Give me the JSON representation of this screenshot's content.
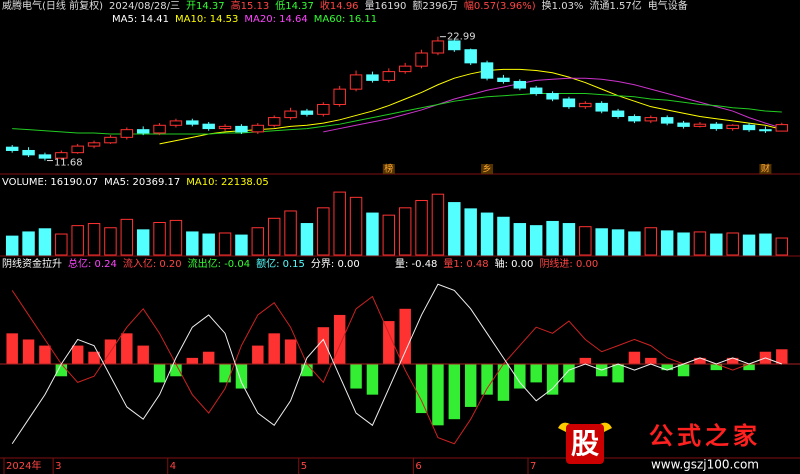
{
  "header": {
    "items": [
      {
        "text": "威腾电气(日线 前复权)",
        "color": "#dddddd"
      },
      {
        "text": "2024/08/28/三",
        "color": "#dddddd"
      },
      {
        "text": "开14.37",
        "color": "#33ff33"
      },
      {
        "text": "高15.13",
        "color": "#ff4444"
      },
      {
        "text": "低14.37",
        "color": "#33ff33"
      },
      {
        "text": "收14.96",
        "color": "#ff4444"
      },
      {
        "text": "量16190",
        "color": "#dddddd"
      },
      {
        "text": "额2396万",
        "color": "#dddddd"
      },
      {
        "text": "幅0.57(3.96%)",
        "color": "#ff4444"
      },
      {
        "text": "换1.03%",
        "color": "#dddddd"
      },
      {
        "text": "流通1.57亿",
        "color": "#dddddd"
      },
      {
        "text": "电气设备",
        "color": "#dddddd"
      }
    ]
  },
  "chart_data": [
    {
      "type": "candlestick",
      "categories": [
        "2024年",
        null,
        null,
        "3",
        null,
        null,
        null,
        null,
        null,
        null,
        "4",
        null,
        null,
        null,
        null,
        null,
        null,
        null,
        "5",
        null,
        null,
        null,
        null,
        null,
        null,
        "6",
        null,
        null,
        null,
        null,
        null,
        null,
        "7",
        null,
        null,
        null,
        null,
        null,
        null,
        null,
        null,
        null,
        null,
        null,
        null,
        null,
        null,
        null
      ],
      "open": [
        12.9,
        12.6,
        12.2,
        11.9,
        12.4,
        13.0,
        13.3,
        13.8,
        14.5,
        14.2,
        14.9,
        15.3,
        15.0,
        14.6,
        14.8,
        14.3,
        14.9,
        15.6,
        16.2,
        15.9,
        16.8,
        18.2,
        19.5,
        19.0,
        19.8,
        20.3,
        21.5,
        22.6,
        21.8,
        20.6,
        19.2,
        18.9,
        18.3,
        17.8,
        17.3,
        16.6,
        16.9,
        16.2,
        15.7,
        15.3,
        15.6,
        15.1,
        14.8,
        15.0,
        14.6,
        14.9,
        14.5,
        14.37
      ],
      "high": [
        13.1,
        12.9,
        12.4,
        12.6,
        13.2,
        13.5,
        14.0,
        14.7,
        14.8,
        15.1,
        15.5,
        15.5,
        15.2,
        15.0,
        15.0,
        15.1,
        15.8,
        16.5,
        16.4,
        17.0,
        18.5,
        19.9,
        19.8,
        20.1,
        20.6,
        21.8,
        22.99,
        22.8,
        21.9,
        20.8,
        19.5,
        19.1,
        18.5,
        18.0,
        17.5,
        17.1,
        17.1,
        16.4,
        15.9,
        15.8,
        15.8,
        15.3,
        15.2,
        15.2,
        15.0,
        15.1,
        14.8,
        15.13
      ],
      "low": [
        12.4,
        12.0,
        11.68,
        11.8,
        12.3,
        12.8,
        13.2,
        13.6,
        14.0,
        14.0,
        14.7,
        14.8,
        14.4,
        14.4,
        14.1,
        14.1,
        14.7,
        15.4,
        15.7,
        15.7,
        16.6,
        18.0,
        18.8,
        18.8,
        19.6,
        20.1,
        21.3,
        21.6,
        20.4,
        19.0,
        18.7,
        18.1,
        17.6,
        17.1,
        16.4,
        16.4,
        16.0,
        15.5,
        15.1,
        15.1,
        14.9,
        14.6,
        14.7,
        14.4,
        14.4,
        14.3,
        14.2,
        14.37
      ],
      "close": [
        12.6,
        12.2,
        11.9,
        12.4,
        13.0,
        13.3,
        13.8,
        14.5,
        14.2,
        14.9,
        15.3,
        15.0,
        14.6,
        14.8,
        14.3,
        14.9,
        15.6,
        16.2,
        15.9,
        16.8,
        18.2,
        19.5,
        19.0,
        19.8,
        20.3,
        21.5,
        22.6,
        21.8,
        20.6,
        19.2,
        18.9,
        18.3,
        17.8,
        17.3,
        16.6,
        16.9,
        16.2,
        15.7,
        15.3,
        15.6,
        15.1,
        14.8,
        15.0,
        14.6,
        14.9,
        14.5,
        14.4,
        14.96
      ],
      "up_color": "#ff3232",
      "down_color": "#54ffff",
      "ylim": [
        11,
        23.6
      ],
      "legend": [
        {
          "text": "MA5: 14.41",
          "color": "#ffffff"
        },
        {
          "text": "MA10: 14.53",
          "color": "#ffff00"
        },
        {
          "text": "MA20: 14.64",
          "color": "#ff44ff"
        },
        {
          "text": "MA60: 16.11",
          "color": "#33ff33"
        }
      ],
      "series": [
        {
          "color": "#ffff00",
          "values": [
            null,
            null,
            null,
            null,
            null,
            null,
            null,
            null,
            null,
            13.2,
            13.5,
            13.8,
            14.1,
            14.3,
            14.4,
            14.5,
            14.6,
            14.8,
            14.9,
            15.1,
            15.4,
            15.8,
            16.2,
            16.7,
            17.3,
            17.9,
            18.6,
            19.2,
            19.6,
            19.9,
            20.0,
            20.0,
            19.9,
            19.7,
            19.3,
            18.8,
            18.2,
            17.6,
            17.1,
            16.6,
            16.3,
            16.0,
            15.7,
            15.5,
            15.3,
            15.1,
            14.9,
            14.53
          ]
        },
        {
          "color": "#cc33cc",
          "values": [
            null,
            null,
            null,
            null,
            null,
            null,
            null,
            null,
            null,
            null,
            null,
            null,
            null,
            null,
            null,
            null,
            null,
            null,
            null,
            14.3,
            14.6,
            14.9,
            15.2,
            15.5,
            15.9,
            16.3,
            16.8,
            17.3,
            17.7,
            18.1,
            18.4,
            18.7,
            19.0,
            19.1,
            19.2,
            19.2,
            19.1,
            18.9,
            18.6,
            18.2,
            17.8,
            17.4,
            17.0,
            16.6,
            16.2,
            15.6,
            15.1,
            14.64
          ]
        },
        {
          "color": "#22cc22",
          "values": [
            14.6,
            14.5,
            14.4,
            14.3,
            14.2,
            14.2,
            14.1,
            14.1,
            14.1,
            14.1,
            14.1,
            14.1,
            14.1,
            14.2,
            14.2,
            14.3,
            14.4,
            14.5,
            14.6,
            14.8,
            15.0,
            15.3,
            15.6,
            15.9,
            16.2,
            16.5,
            16.8,
            17.1,
            17.3,
            17.5,
            17.6,
            17.7,
            17.8,
            17.8,
            17.8,
            17.8,
            17.7,
            17.6,
            17.5,
            17.3,
            17.2,
            17.0,
            16.8,
            16.7,
            16.5,
            16.4,
            16.2,
            16.11
          ]
        }
      ],
      "annotations": [
        {
          "text": "榜",
          "x": 23
        },
        {
          "text": "乡",
          "x": 29
        },
        {
          "text": "财",
          "x": 46
        }
      ]
    },
    {
      "type": "volume",
      "legend": [
        {
          "text": "VOLUME: 16190.07",
          "color": "#ffffff"
        },
        {
          "text": "MA5: 20369.17",
          "color": "#ffffff"
        },
        {
          "text": "MA10: 22138.05",
          "color": "#ffff00"
        }
      ],
      "values": [
        18000,
        22000,
        25000,
        20000,
        28000,
        30000,
        26000,
        34000,
        24000,
        31000,
        33000,
        22000,
        20000,
        21000,
        19000,
        26000,
        35000,
        42000,
        30000,
        45000,
        60000,
        55000,
        40000,
        38000,
        45000,
        52000,
        58000,
        50000,
        44000,
        40000,
        36000,
        30000,
        28000,
        32000,
        30000,
        27000,
        25000,
        24000,
        22000,
        26000,
        23000,
        21000,
        22000,
        20000,
        21000,
        19000,
        20000,
        16190
      ],
      "ylim": [
        0,
        62000
      ]
    },
    {
      "type": "indicator",
      "legend": [
        {
          "text": "阴线资金拉升",
          "color": "#ffffff"
        },
        {
          "text": "总亿: 0.24",
          "color": "#ff44ff"
        },
        {
          "text": "流入亿: 0.20",
          "color": "#ff4444"
        },
        {
          "text": "流出亿: -0.04",
          "color": "#33ff33"
        },
        {
          "text": "额亿: 0.15",
          "color": "#54ffff"
        },
        {
          "text": "分界: 0.00",
          "color": "#ffffff"
        }
      ],
      "legend2": [
        {
          "text": "量: -0.48",
          "color": "#ffffff"
        },
        {
          "text": "量1: 0.48",
          "color": "#ff4444"
        },
        {
          "text": "轴: 0.00",
          "color": "#ffffff"
        },
        {
          "text": "阴线进: 0.00",
          "color": "#ff4444"
        }
      ],
      "values": [
        0.5,
        0.4,
        0.3,
        -0.2,
        0.3,
        0.2,
        0.4,
        0.5,
        0.3,
        -0.3,
        -0.2,
        0.1,
        0.2,
        -0.3,
        -0.4,
        0.3,
        0.5,
        0.4,
        -0.2,
        0.6,
        0.8,
        -0.4,
        -0.5,
        0.7,
        0.9,
        -0.8,
        -1.0,
        -0.9,
        -0.7,
        -0.5,
        -0.6,
        -0.4,
        -0.3,
        -0.5,
        -0.3,
        0.1,
        -0.2,
        -0.3,
        0.2,
        0.1,
        -0.1,
        -0.2,
        0.1,
        -0.1,
        0.1,
        -0.1,
        0.2,
        0.24
      ],
      "pos_color": "#ff3232",
      "neg_color": "#33ee33",
      "ylim": [
        -1.5,
        1.5
      ],
      "series": [
        {
          "color": "#cc2222",
          "values": [
            1.2,
            0.8,
            0.4,
            0.0,
            -0.3,
            -0.2,
            0.2,
            0.6,
            0.9,
            0.5,
            0.0,
            -0.5,
            -0.8,
            -0.4,
            0.3,
            0.8,
            1.0,
            0.6,
            0.0,
            -0.3,
            0.3,
            0.9,
            1.1,
            0.5,
            -0.1,
            -0.6,
            -1.2,
            -1.3,
            -0.9,
            -0.4,
            0.0,
            0.3,
            0.6,
            0.5,
            0.7,
            0.4,
            0.2,
            0.3,
            0.4,
            0.3,
            0.1,
            0.0,
            0.1,
            0.0,
            -0.1,
            0.0,
            0.1,
            0.0
          ]
        },
        {
          "color": "#eeeeee",
          "values": [
            -1.3,
            -0.9,
            -0.5,
            0.0,
            0.4,
            0.3,
            -0.2,
            -0.7,
            -0.9,
            -0.5,
            0.1,
            0.6,
            0.8,
            0.5,
            -0.3,
            -0.8,
            -1.0,
            -0.6,
            0.1,
            0.4,
            -0.2,
            -0.8,
            -1.0,
            -0.4,
            0.2,
            0.8,
            1.3,
            1.2,
            0.9,
            0.5,
            0.1,
            -0.3,
            -0.6,
            -0.4,
            -0.1,
            0.0,
            -0.1,
            0.0,
            -0.1,
            0.0,
            -0.1,
            0.0,
            0.1,
            0.0,
            0.1,
            0.0,
            0.1,
            0.0
          ]
        }
      ]
    }
  ],
  "watermark": {
    "logo": "股",
    "name": "公式之家",
    "url": "www.gszj100.com"
  }
}
